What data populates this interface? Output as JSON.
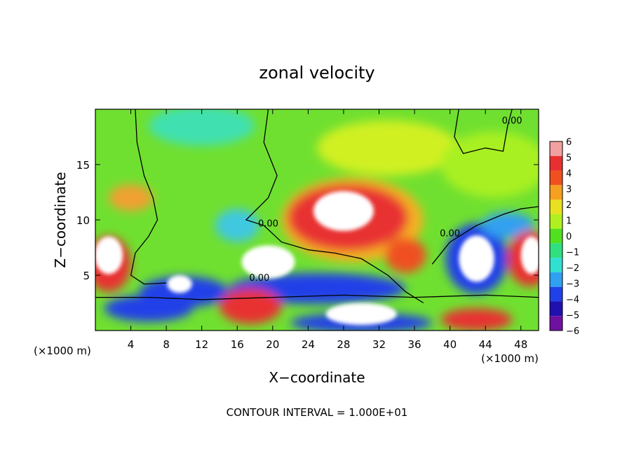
{
  "chart_data": {
    "type": "heatmap",
    "title": "zonal velocity",
    "xlabel": "X−coordinate",
    "ylabel": "Z−coordinate",
    "xunit_left": "(×1000 m)",
    "xunit_right": "(×1000 m)",
    "xlim": [
      0,
      50
    ],
    "ylim": [
      0,
      20
    ],
    "xticks": [
      4,
      8,
      12,
      16,
      20,
      24,
      28,
      32,
      36,
      40,
      44,
      48
    ],
    "yticks": [
      5,
      10,
      15
    ],
    "footer": "CONTOUR INTERVAL = 1.000E+01",
    "colorbar": {
      "levels": [
        6,
        5,
        4,
        3,
        2,
        1,
        0,
        -1,
        -2,
        -3,
        -4,
        -5,
        -6
      ],
      "labels": [
        "6",
        "5",
        "4",
        "3",
        "2",
        "1",
        "0",
        "−1",
        "−2",
        "−3",
        "−4",
        "−5",
        "−6"
      ],
      "colors": [
        "#f2a0a0",
        "#e83030",
        "#f05020",
        "#f5a020",
        "#e8e020",
        "#b0f020",
        "#50e020",
        "#30e080",
        "#30e0d0",
        "#30a0f0",
        "#2040e8",
        "#2010b0",
        "#7010a0"
      ]
    },
    "contour_labels": [
      "0.00",
      "0.00",
      "0.00",
      "0.00"
    ],
    "field_colors": {
      "background": "#70e030",
      "positive_strong": "#e83030",
      "positive_mid": "#f5a020",
      "positive_weak": "#c8f020",
      "negative_weak": "#30e0d0",
      "negative_mid": "#30a0f0",
      "negative_strong": "#2040e8",
      "saturated": "#ffffff"
    }
  }
}
